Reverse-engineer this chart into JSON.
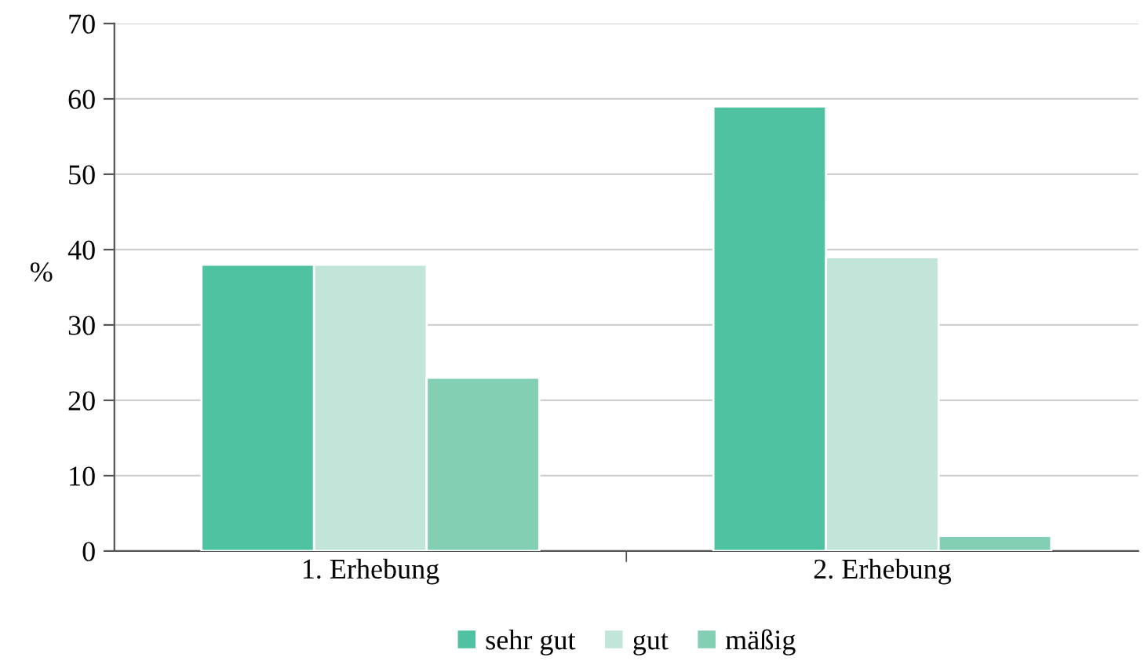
{
  "chart_data": {
    "type": "bar",
    "ylabel": "%",
    "categories": [
      "1. Erhebung",
      "2. Erhebung"
    ],
    "series": [
      {
        "name": "sehr gut",
        "color": "#4fc3a1",
        "values": [
          38,
          59
        ]
      },
      {
        "name": "gut",
        "color": "#c2e5d9",
        "values": [
          38,
          39
        ]
      },
      {
        "name": "mäßig",
        "color": "#82cfb4",
        "values": [
          23,
          2
        ]
      }
    ],
    "ylim": [
      0,
      70
    ],
    "yticks": [
      0,
      10,
      20,
      30,
      40,
      50,
      60,
      70
    ],
    "grid": "y",
    "legend": "bottom"
  }
}
